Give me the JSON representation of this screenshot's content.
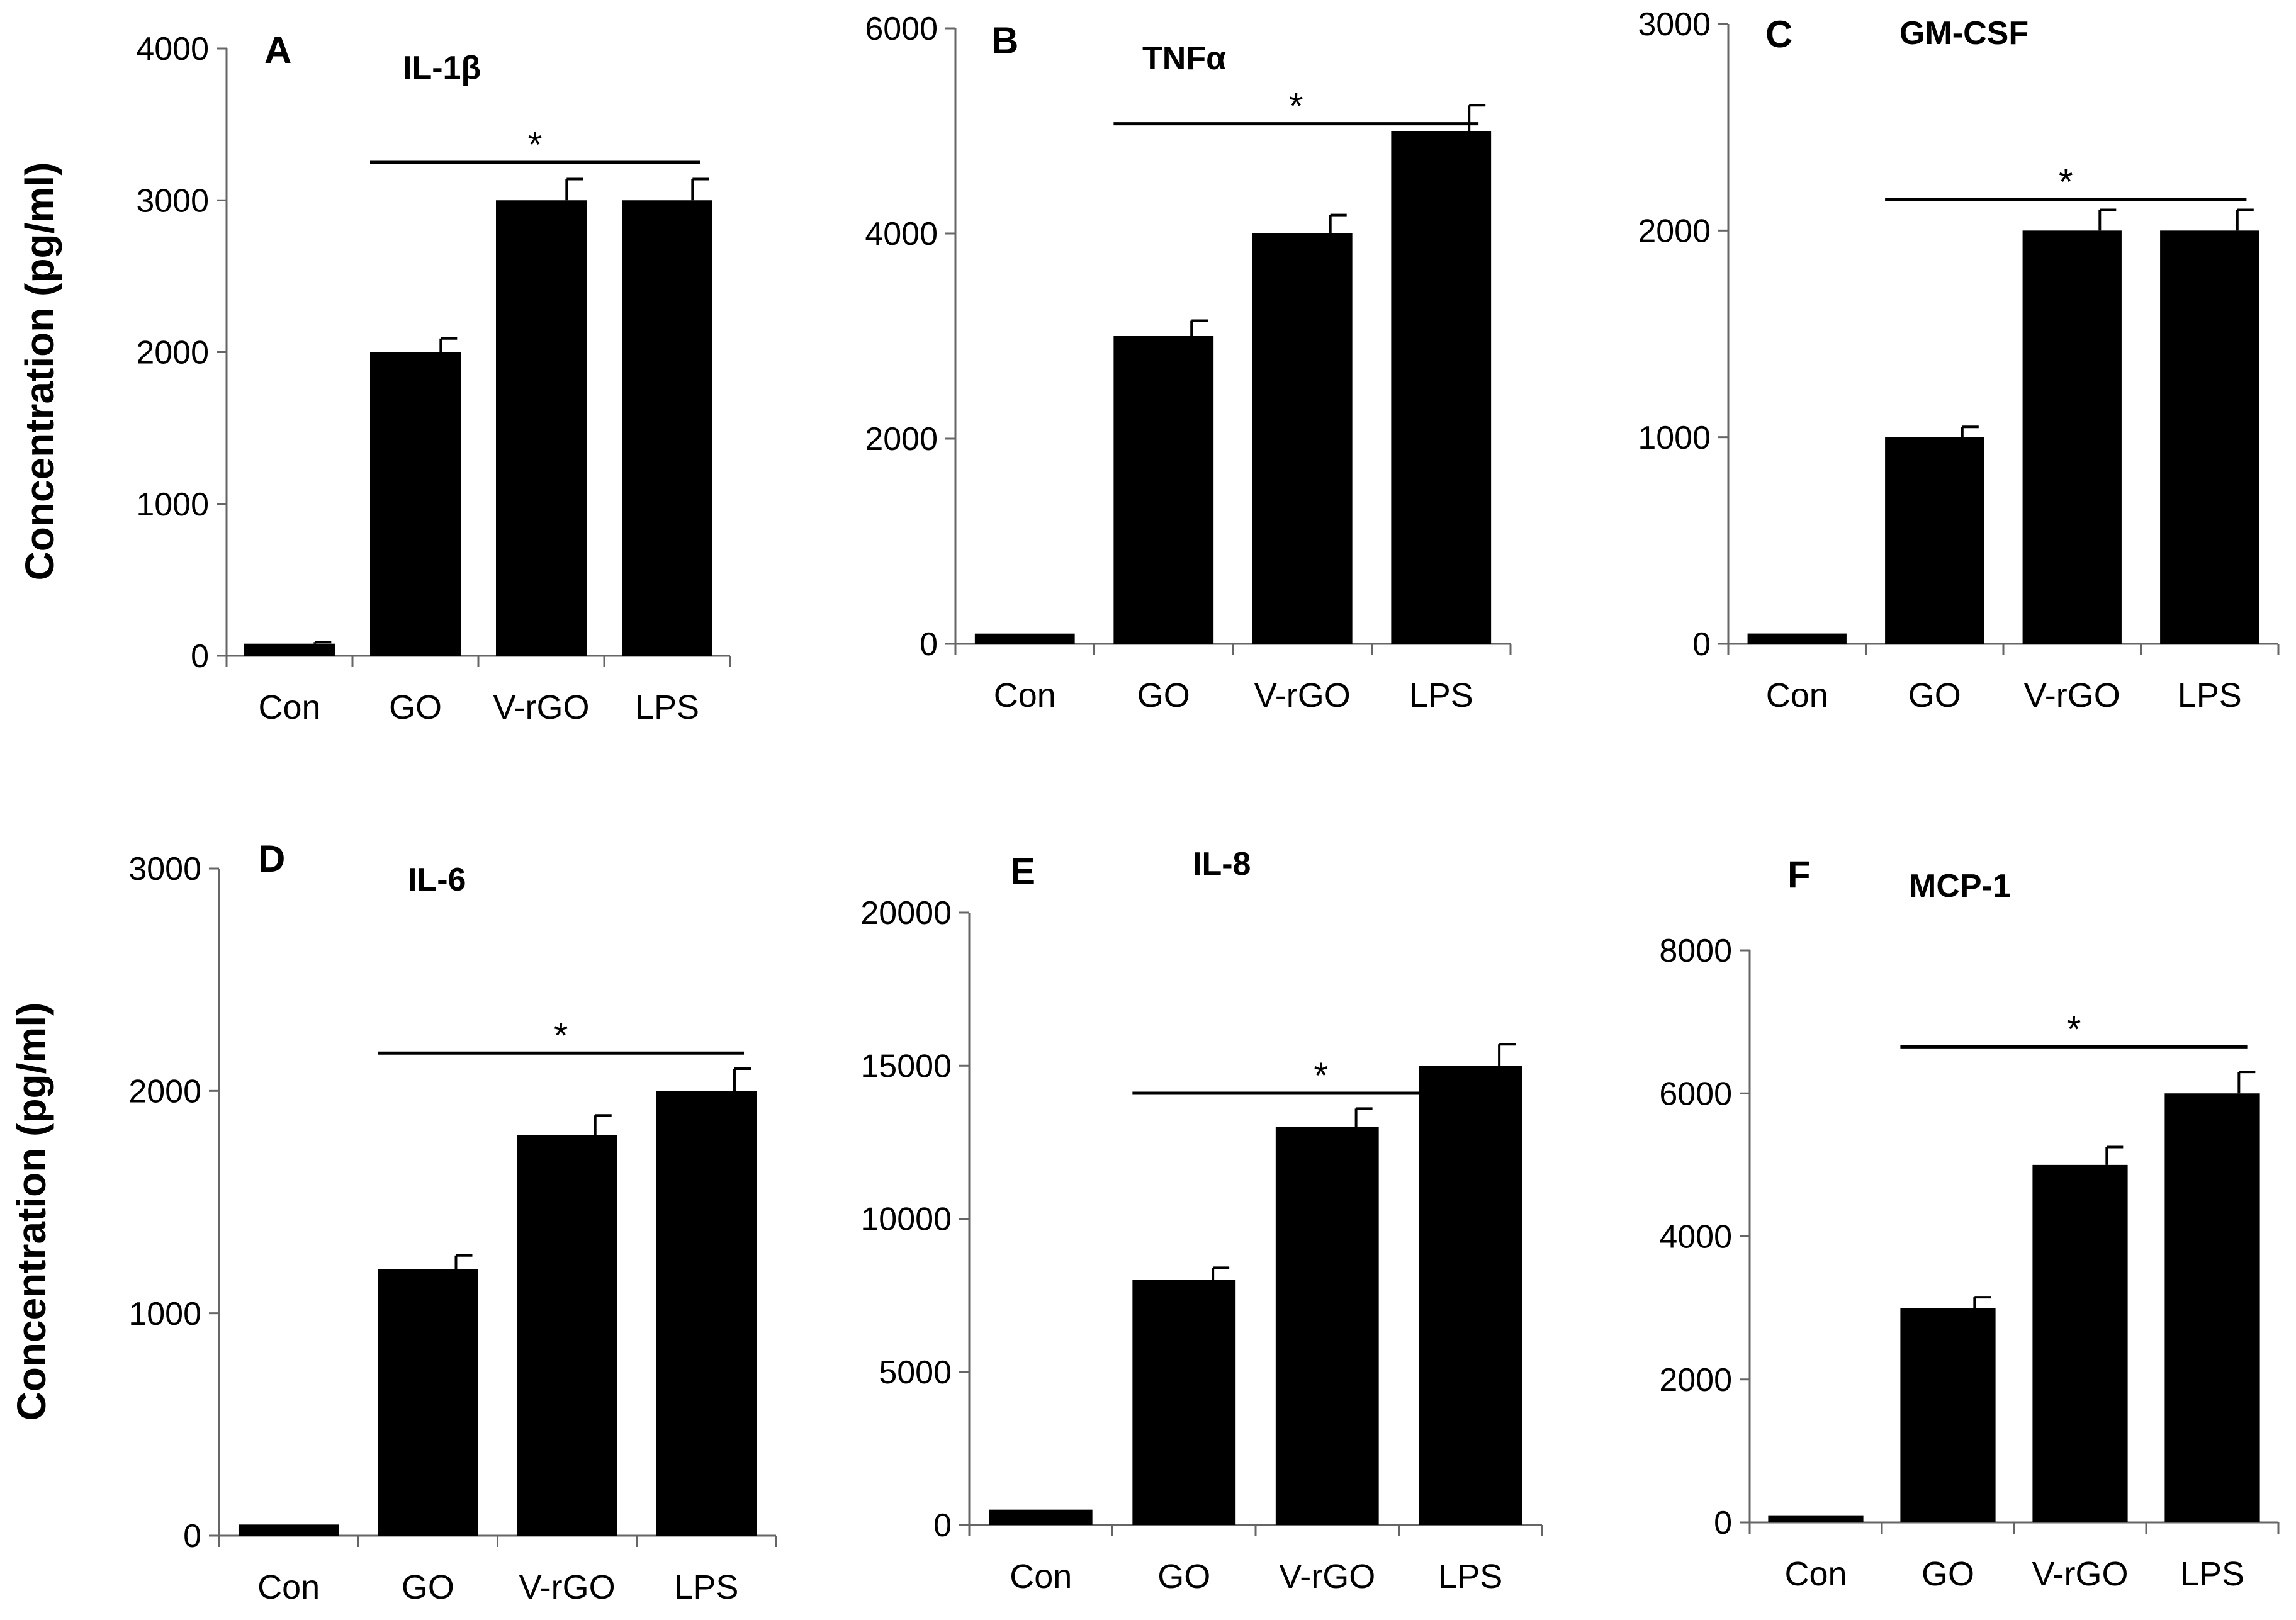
{
  "figure": {
    "ylabel": "Concentration (pg/ml)"
  },
  "chart_data": [
    {
      "type": "bar",
      "panel": "A",
      "title": "IL-1β",
      "categories": [
        "Con",
        "GO",
        "V-rGO",
        "LPS"
      ],
      "values": [
        80,
        2000,
        3000,
        3000
      ],
      "errors": [
        10,
        90,
        140,
        140
      ],
      "yticks": [
        0,
        1000,
        2000,
        3000,
        4000
      ],
      "ylim": [
        0,
        4000
      ],
      "ylabel": "Concentration (pg/ml)",
      "significance": {
        "label": "*",
        "from": 1,
        "to": 3,
        "y": 3250
      }
    },
    {
      "type": "bar",
      "panel": "B",
      "title": "TNFα",
      "categories": [
        "Con",
        "GO",
        "V-rGO",
        "LPS"
      ],
      "values": [
        100,
        3000,
        4000,
        5000
      ],
      "errors": [
        0,
        150,
        180,
        250
      ],
      "yticks": [
        0,
        2000,
        4000,
        6000
      ],
      "ylim": [
        0,
        6000
      ],
      "ylabel": "",
      "significance": {
        "label": "*",
        "from": 1,
        "to": 3,
        "y": 5070
      }
    },
    {
      "type": "bar",
      "panel": "C",
      "title": "GM-CSF",
      "categories": [
        "Con",
        "GO",
        "V-rGO",
        "LPS"
      ],
      "values": [
        50,
        1000,
        2000,
        2000
      ],
      "errors": [
        0,
        50,
        100,
        100
      ],
      "yticks": [
        0,
        1000,
        2000,
        3000
      ],
      "ylim": [
        0,
        3000
      ],
      "ylabel": "",
      "significance": {
        "label": "*",
        "from": 1,
        "to": 3,
        "y": 2150
      }
    },
    {
      "type": "bar",
      "panel": "D",
      "title": "IL-6",
      "categories": [
        "Con",
        "GO",
        "V-rGO",
        "LPS"
      ],
      "values": [
        50,
        1200,
        1800,
        2000
      ],
      "errors": [
        0,
        60,
        90,
        100
      ],
      "yticks": [
        0,
        1000,
        2000,
        3000
      ],
      "ylim": [
        0,
        3000
      ],
      "ylabel": "Concentration (pg/ml)",
      "significance": {
        "label": "*",
        "from": 1,
        "to": 3,
        "y": 2170
      }
    },
    {
      "type": "bar",
      "panel": "E",
      "title": "IL-8",
      "categories": [
        "Con",
        "GO",
        "V-rGO",
        "LPS"
      ],
      "values": [
        500,
        8000,
        13000,
        15000
      ],
      "errors": [
        0,
        400,
        600,
        700
      ],
      "yticks": [
        0,
        5000,
        10000,
        15000,
        20000
      ],
      "ylim": [
        0,
        20000
      ],
      "ylabel": "",
      "significance": {
        "label": "*",
        "from": 1,
        "to": 3,
        "y": 14100
      }
    },
    {
      "type": "bar",
      "panel": "F",
      "title": "MCP-1",
      "categories": [
        "Con",
        "GO",
        "V-rGO",
        "LPS"
      ],
      "values": [
        100,
        3000,
        5000,
        6000
      ],
      "errors": [
        0,
        150,
        250,
        300
      ],
      "yticks": [
        0,
        2000,
        4000,
        6000,
        8000
      ],
      "ylim": [
        0,
        8000
      ],
      "ylabel": "",
      "significance": {
        "label": "*",
        "from": 1,
        "to": 3,
        "y": 6650
      }
    }
  ]
}
